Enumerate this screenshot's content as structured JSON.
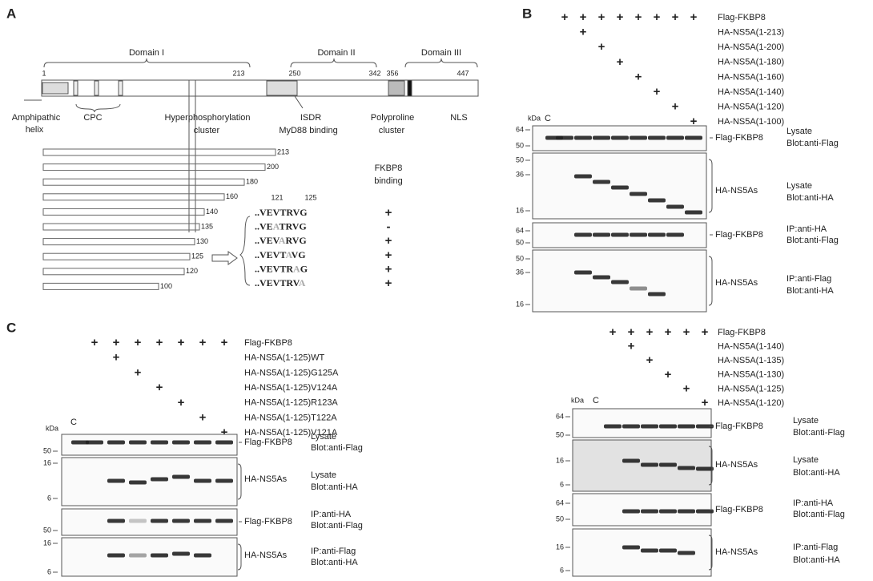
{
  "panel_a": {
    "label": "A",
    "domains": [
      "Domain I",
      "Domain II",
      "Domain III"
    ],
    "positions": [
      "1",
      "213",
      "250",
      "342",
      "356",
      "447"
    ],
    "features": [
      "Amphipathic",
      "helix",
      "CPC",
      "Hyperphosphorylation",
      "cluster",
      "ISDR",
      "MyD88 binding",
      "Polyproline",
      "cluster",
      "NLS"
    ],
    "truncations": [
      "213",
      "200",
      "180",
      "160",
      "140",
      "135",
      "130",
      "125",
      "120",
      "100"
    ],
    "binding_header": [
      "FKBP8",
      "binding"
    ],
    "residues": [
      "121",
      "125"
    ],
    "mutants": [
      {
        "parts": [
          "..VEVTRVG"
        ],
        "binding": "+"
      },
      {
        "parts": [
          "..VE",
          "A",
          "TRVG"
        ],
        "binding": "-"
      },
      {
        "parts": [
          "..VEV",
          "A",
          "RVG"
        ],
        "binding": "+"
      },
      {
        "parts": [
          "..VEVT",
          "A",
          "VG"
        ],
        "binding": "+"
      },
      {
        "parts": [
          "..VEVTR",
          "A",
          "G"
        ],
        "binding": "+"
      },
      {
        "parts": [
          "..VEVTRV",
          "A"
        ],
        "binding": "+"
      }
    ]
  },
  "panel_b": {
    "label": "B",
    "sets": [
      {
        "lanes": [
          {
            "label": "Flag-FKBP8",
            "marks": [
              "+",
              "+",
              "+",
              "+",
              "+",
              "+",
              "+",
              "+"
            ]
          },
          {
            "label": "HA-NS5A(1-213)",
            "marks": [
              null,
              "+",
              null,
              null,
              null,
              null,
              null,
              null
            ]
          },
          {
            "label": "HA-NS5A(1-200)",
            "marks": [
              null,
              null,
              "+",
              null,
              null,
              null,
              null,
              null
            ]
          },
          {
            "label": "HA-NS5A(1-180)",
            "marks": [
              null,
              null,
              null,
              "+",
              null,
              null,
              null,
              null
            ]
          },
          {
            "label": "HA-NS5A(1-160)",
            "marks": [
              null,
              null,
              null,
              null,
              "+",
              null,
              null,
              null
            ]
          },
          {
            "label": "HA-NS5A(1-140)",
            "marks": [
              null,
              null,
              null,
              null,
              null,
              "+",
              null,
              null
            ]
          },
          {
            "label": "HA-NS5A(1-120)",
            "marks": [
              null,
              null,
              null,
              null,
              null,
              null,
              "+",
              null
            ]
          },
          {
            "label": "HA-NS5A(1-100)",
            "marks": [
              null,
              null,
              null,
              null,
              null,
              null,
              null,
              "+"
            ]
          }
        ],
        "kda": "kDa",
        "control": "C",
        "blots": [
          {
            "markers": [
              "64",
              "50"
            ],
            "name": "Flag-FKBP8",
            "condition": [
              "Lysate",
              "Blot:anti-Flag"
            ]
          },
          {
            "markers": [
              "50",
              "36",
              "16"
            ],
            "name": "HA-NS5As",
            "condition": [
              "Lysate",
              "Blot:anti-HA"
            ]
          },
          {
            "markers": [
              "64",
              "50"
            ],
            "name": "Flag-FKBP8",
            "condition": [
              "IP:anti-HA",
              "Blot:anti-Flag"
            ]
          },
          {
            "markers": [
              "50",
              "36",
              "16"
            ],
            "name": "HA-NS5As",
            "condition": [
              "IP:anti-Flag",
              "Blot:anti-HA"
            ]
          }
        ]
      },
      {
        "lanes": [
          {
            "label": "Flag-FKBP8",
            "marks": [
              "+",
              "+",
              "+",
              "+",
              "+",
              "+"
            ]
          },
          {
            "label": "HA-NS5A(1-140)",
            "marks": [
              null,
              "+",
              null,
              null,
              null,
              null
            ]
          },
          {
            "label": "HA-NS5A(1-135)",
            "marks": [
              null,
              null,
              "+",
              null,
              null,
              null
            ]
          },
          {
            "label": "HA-NS5A(1-130)",
            "marks": [
              null,
              null,
              null,
              "+",
              null,
              null
            ]
          },
          {
            "label": "HA-NS5A(1-125)",
            "marks": [
              null,
              null,
              null,
              null,
              "+",
              null
            ]
          },
          {
            "label": "HA-NS5A(1-120)",
            "marks": [
              null,
              null,
              null,
              null,
              null,
              "+"
            ]
          }
        ],
        "kda": "kDa",
        "control": "C",
        "blots": [
          {
            "markers": [
              "64",
              "50"
            ],
            "name": "Flag-FKBP8",
            "condition": [
              "Lysate",
              "Blot:anti-Flag"
            ]
          },
          {
            "markers": [
              "16",
              "6"
            ],
            "name": "HA-NS5As",
            "condition": [
              "Lysate",
              "Blot:anti-HA"
            ]
          },
          {
            "markers": [
              "64",
              "50"
            ],
            "name": "Flag-FKBP8",
            "condition": [
              "IP:anti-HA",
              "Blot:anti-Flag"
            ]
          },
          {
            "markers": [
              "16",
              "6"
            ],
            "name": "HA-NS5As",
            "condition": [
              "IP:anti-Flag",
              "Blot:anti-HA"
            ]
          }
        ]
      }
    ]
  },
  "panel_c": {
    "label": "C",
    "sets": [
      {
        "lanes": [
          {
            "label": "Flag-FKBP8",
            "marks": [
              "+",
              "+",
              "+",
              "+",
              "+",
              "+",
              "+"
            ]
          },
          {
            "label": "HA-NS5A(1-125)WT",
            "marks": [
              null,
              "+",
              null,
              null,
              null,
              null,
              null
            ]
          },
          {
            "label": "HA-NS5A(1-125)G125A",
            "marks": [
              null,
              null,
              "+",
              null,
              null,
              null,
              null
            ]
          },
          {
            "label": "HA-NS5A(1-125)V124A",
            "marks": [
              null,
              null,
              null,
              "+",
              null,
              null,
              null
            ]
          },
          {
            "label": "HA-NS5A(1-125)R123A",
            "marks": [
              null,
              null,
              null,
              null,
              "+",
              null,
              null
            ]
          },
          {
            "label": "HA-NS5A(1-125)T122A",
            "marks": [
              null,
              null,
              null,
              null,
              null,
              "+",
              null
            ]
          },
          {
            "label": "HA-NS5A(1-125)V121A",
            "marks": [
              null,
              null,
              null,
              null,
              null,
              null,
              "+"
            ]
          }
        ],
        "kda": "kDa",
        "control": "C",
        "blots": [
          {
            "markers": [
              "50"
            ],
            "name": "Flag-FKBP8",
            "condition": [
              "Lysate",
              "Blot:anti-Flag"
            ]
          },
          {
            "markers": [
              "16",
              "6"
            ],
            "name": "HA-NS5As",
            "condition": [
              "Lysate",
              "Blot:anti-HA"
            ]
          },
          {
            "markers": [
              "50"
            ],
            "name": "Flag-FKBP8",
            "condition": [
              "IP:anti-HA",
              "Blot:anti-Flag"
            ]
          },
          {
            "markers": [
              "16",
              "6"
            ],
            "name": "HA-NS5As",
            "condition": [
              "IP:anti-Flag",
              "Blot:anti-HA"
            ]
          }
        ]
      }
    ]
  }
}
